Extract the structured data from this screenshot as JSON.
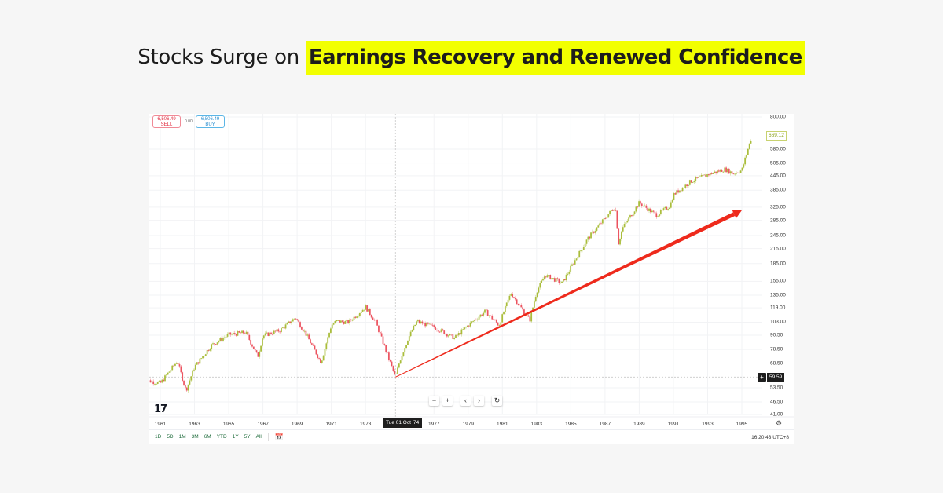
{
  "headline": {
    "plain": "Stocks Surge on",
    "highlighted": "Earnings Recovery and Renewed Confidence",
    "highlight_color": "#f2ff00"
  },
  "trade_panel": {
    "sell_price": "6,506.49",
    "sell_label": "SELL",
    "spread": "0.00",
    "buy_price": "6,506.49",
    "buy_label": "BUY"
  },
  "price_axis": {
    "labels": [
      "800.00",
      "669.12",
      "580.00",
      "505.00",
      "445.00",
      "385.00",
      "325.00",
      "285.00",
      "245.00",
      "215.00",
      "185.00",
      "155.00",
      "135.00",
      "119.00",
      "103.00",
      "90.50",
      "78.50",
      "68.50",
      "59.59",
      "53.50",
      "46.50",
      "41.00"
    ],
    "last_price": "669.12",
    "crosshair_price": "59.59",
    "crosshair_plus_icon": "+"
  },
  "time_axis": {
    "labels": [
      "1961",
      "1963",
      "1965",
      "1967",
      "1969",
      "1971",
      "1973",
      "1977",
      "1979",
      "1981",
      "1983",
      "1985",
      "1987",
      "1989",
      "1991",
      "1993",
      "1995"
    ],
    "crosshair_date": "Tue 01 Oct '74"
  },
  "nav_buttons": [
    "−",
    "+",
    "‹",
    "›",
    "↻"
  ],
  "logo": "17",
  "range_buttons": [
    "1D",
    "5D",
    "1M",
    "3M",
    "6M",
    "YTD",
    "1Y",
    "5Y",
    "All"
  ],
  "clock": "16:20:43 UTC+8",
  "colors": {
    "up": "#a3b82c",
    "down": "#e8303f",
    "arrow": "#ee2a1c",
    "grid": "#f2f3f5"
  },
  "chart_data": {
    "type": "candlestick",
    "title": "Stocks Surge on Earnings Recovery and Renewed Confidence",
    "xlabel": "",
    "ylabel": "",
    "y_scale": "log",
    "ylim": [
      41,
      800
    ],
    "grid": true,
    "x": [
      1960.0,
      1961.0,
      1962.0,
      1962.5,
      1963.0,
      1964.0,
      1965.0,
      1966.0,
      1966.7,
      1967.0,
      1968.0,
      1968.9,
      1969.5,
      1970.4,
      1971.0,
      1971.3,
      1972.0,
      1973.0,
      1973.6,
      1974.75,
      1975.0,
      1975.5,
      1976.0,
      1977.0,
      1978.2,
      1979.0,
      1980.0,
      1980.8,
      1981.5,
      1982.6,
      1983.0,
      1983.5,
      1984.5,
      1985.0,
      1986.0,
      1987.6,
      1987.8,
      1988.0,
      1989.0,
      1990.0,
      1990.8,
      1991.0,
      1992.0,
      1993.0,
      1994.0,
      1994.5,
      1995.0,
      1995.6
    ],
    "values": [
      58,
      56,
      70,
      52,
      66,
      82,
      91,
      93,
      73,
      90,
      95,
      108,
      92,
      69,
      100,
      104,
      103,
      120,
      103,
      59.59,
      70,
      88,
      104,
      98,
      88,
      100,
      115,
      100,
      138,
      105,
      140,
      165,
      152,
      178,
      238,
      328,
      225,
      262,
      340,
      300,
      330,
      368,
      420,
      450,
      475,
      455,
      470,
      669.12
    ],
    "annotations": [
      {
        "type": "arrow",
        "from": {
          "x": 1974.75,
          "y": 59.59
        },
        "to": {
          "x": 1995.0,
          "y": 315
        },
        "color": "#ee2a1c"
      },
      {
        "type": "crosshair",
        "x": "Tue 01 Oct '74",
        "y": 59.59
      }
    ]
  }
}
